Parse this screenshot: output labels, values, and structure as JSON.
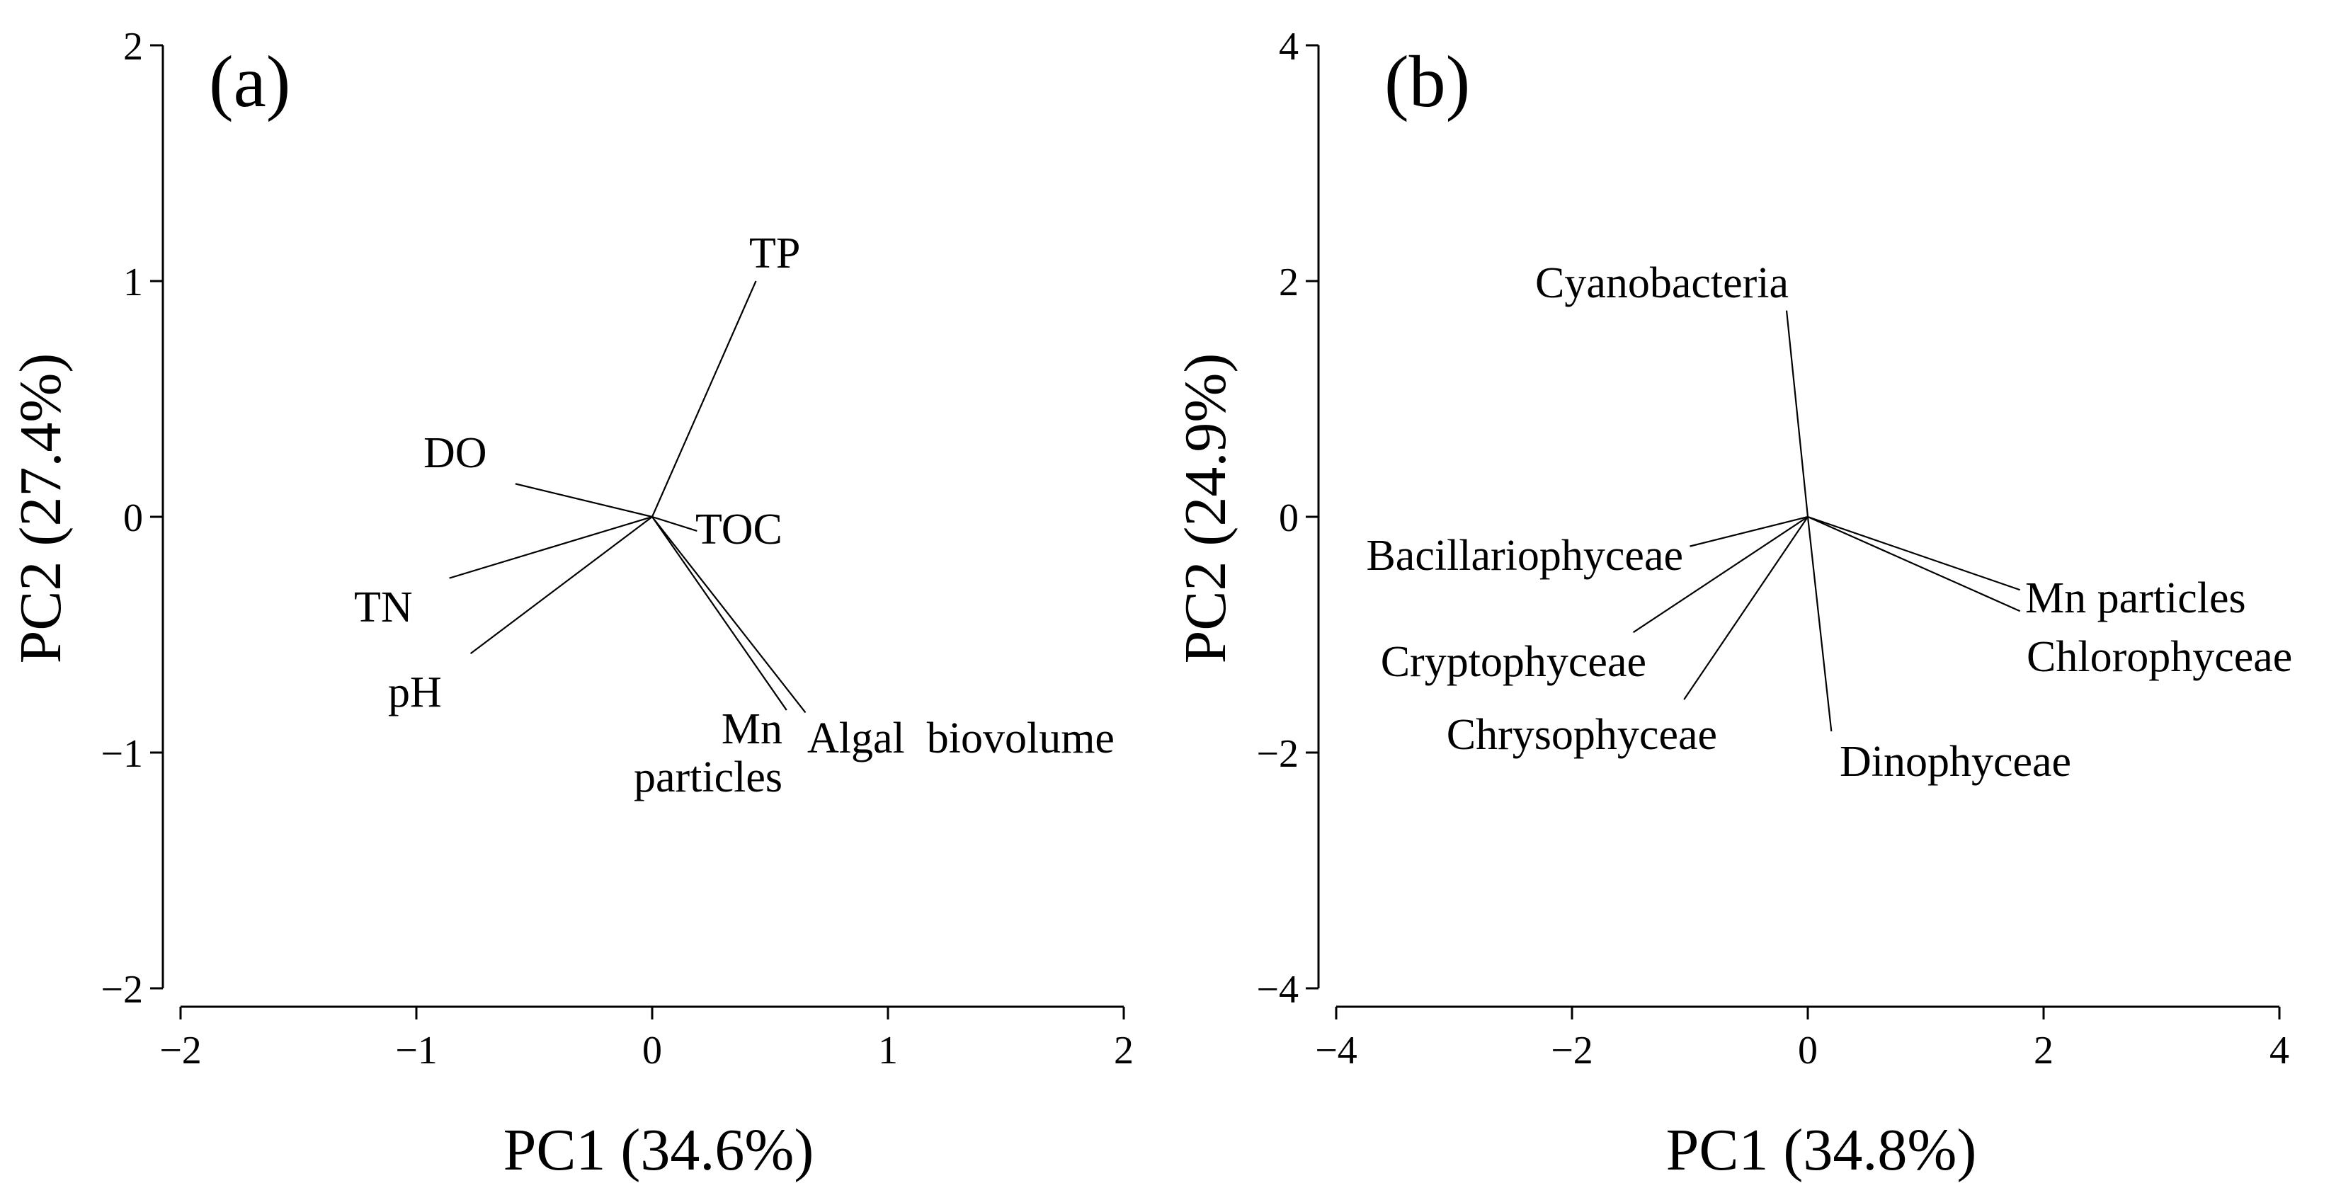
{
  "chart_data": [
    {
      "type": "pca-biplot",
      "panel_label": "(a)",
      "xlabel": "PC1 (34.6%)",
      "ylabel": "PC2 (27.4%)",
      "xlim": [
        -2,
        2
      ],
      "ylim": [
        -2,
        2
      ],
      "xticks": [
        -2,
        -1,
        0,
        1,
        2
      ],
      "yticks": [
        -2,
        -1,
        0,
        1,
        2
      ],
      "xtick_labels": [
        "−2",
        "−1",
        "0",
        "1",
        "2"
      ],
      "ytick_labels": [
        "−2",
        "−1",
        "0",
        "1",
        "2"
      ],
      "vectors": [
        {
          "name": "TP",
          "label_lines": [
            "TP"
          ],
          "x": 0.44,
          "y": 1.0
        },
        {
          "name": "DO",
          "label_lines": [
            "DO"
          ],
          "x": -0.58,
          "y": 0.14
        },
        {
          "name": "TOC",
          "label_lines": [
            "TOC"
          ],
          "x": 0.19,
          "y": -0.06
        },
        {
          "name": "TN",
          "label_lines": [
            "TN"
          ],
          "x": -0.86,
          "y": -0.26
        },
        {
          "name": "pH",
          "label_lines": [
            "pH"
          ],
          "x": -0.77,
          "y": -0.58
        },
        {
          "name": "Mn particles",
          "label_lines": [
            "Mn",
            "particles"
          ],
          "x": 0.57,
          "y": -0.82
        },
        {
          "name": "Algal biovolume",
          "label_lines": [
            "Algal  biovolume"
          ],
          "x": 0.65,
          "y": -0.83
        }
      ]
    },
    {
      "type": "pca-biplot",
      "panel_label": "(b)",
      "xlabel": "PC1 (34.8%)",
      "ylabel": "PC2 (24.9%)",
      "xlim": [
        -4,
        4
      ],
      "ylim": [
        -4,
        4
      ],
      "xticks": [
        -4,
        -2,
        0,
        2,
        4
      ],
      "yticks": [
        -4,
        -2,
        0,
        2,
        4
      ],
      "xtick_labels": [
        "−4",
        "−2",
        "0",
        "2",
        "4"
      ],
      "ytick_labels": [
        "−4",
        "−2",
        "0",
        "2",
        "4"
      ],
      "vectors": [
        {
          "name": "Cyanobacteria",
          "label_lines": [
            "Cyanobacteria"
          ],
          "x": -0.18,
          "y": 1.75
        },
        {
          "name": "Bacillariophyceae",
          "label_lines": [
            "Bacillariophyceae"
          ],
          "x": -1.0,
          "y": -0.25
        },
        {
          "name": "Cryptophyceae",
          "label_lines": [
            "Cryptophyceae"
          ],
          "x": -1.48,
          "y": -0.98
        },
        {
          "name": "Chrysophyceae",
          "label_lines": [
            "Chrysophyceae"
          ],
          "x": -1.05,
          "y": -1.55
        },
        {
          "name": "Dinophyceae",
          "label_lines": [
            "Dinophyceae"
          ],
          "x": 0.2,
          "y": -1.82
        },
        {
          "name": "Mn particles",
          "label_lines": [
            "Mn particles"
          ],
          "x": 1.8,
          "y": -0.62
        },
        {
          "name": "Chlorophyceae",
          "label_lines": [
            "Chlorophyceae"
          ],
          "x": 1.8,
          "y": -0.8
        }
      ]
    }
  ]
}
